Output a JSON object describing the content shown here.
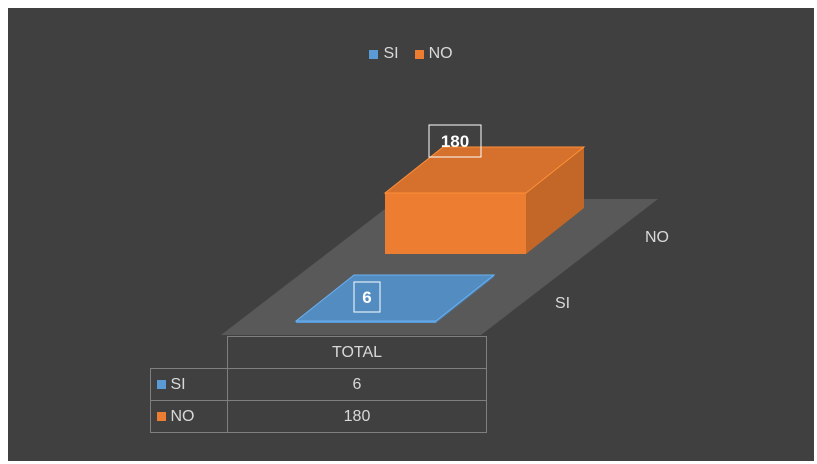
{
  "chart_data": {
    "type": "bar",
    "style": "3d-column",
    "categories": [
      "SI",
      "NO"
    ],
    "series": [
      {
        "name": "TOTAL",
        "values": [
          6,
          180
        ]
      }
    ],
    "legend": {
      "placement": "top",
      "entries": [
        {
          "label": "SI",
          "color": "#5b9bd5"
        },
        {
          "label": "NO",
          "color": "#ed7d31"
        }
      ]
    },
    "data_labels": [
      "6",
      "180"
    ],
    "colors": {
      "SI": "#5b9bd5",
      "NO": "#ed7d31",
      "background": "#404040"
    },
    "grid": false,
    "data_table": {
      "header": "TOTAL",
      "rows": [
        {
          "label": "SI",
          "value": "6"
        },
        {
          "label": "NO",
          "value": "180"
        }
      ]
    }
  }
}
